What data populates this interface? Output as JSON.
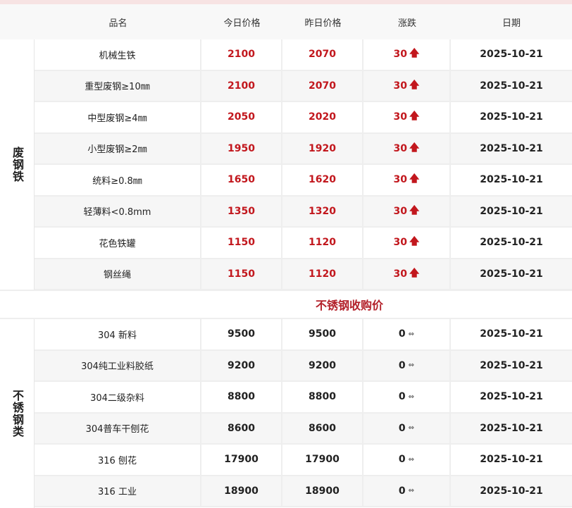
{
  "headers": [
    "品名",
    "今日价格",
    "昨日价格",
    "涨跌",
    "日期"
  ],
  "sections": [
    {
      "category": "废钢铁",
      "trend": "up",
      "rows": [
        {
          "name": "机械生铁",
          "today": "2100",
          "yesterday": "2070",
          "change": "30",
          "date": "2025-10-21"
        },
        {
          "name": "重型废钢≥10㎜",
          "today": "2100",
          "yesterday": "2070",
          "change": "30",
          "date": "2025-10-21"
        },
        {
          "name": "中型废钢≥4㎜",
          "today": "2050",
          "yesterday": "2020",
          "change": "30",
          "date": "2025-10-21"
        },
        {
          "name": "小型废钢≥2㎜",
          "today": "1950",
          "yesterday": "1920",
          "change": "30",
          "date": "2025-10-21"
        },
        {
          "name": "统料≥0.8㎜",
          "today": "1650",
          "yesterday": "1620",
          "change": "30",
          "date": "2025-10-21"
        },
        {
          "name": "轻薄料<0.8mm",
          "today": "1350",
          "yesterday": "1320",
          "change": "30",
          "date": "2025-10-21"
        },
        {
          "name": "花色铁罐",
          "today": "1150",
          "yesterday": "1120",
          "change": "30",
          "date": "2025-10-21"
        },
        {
          "name": "钢丝绳",
          "today": "1150",
          "yesterday": "1120",
          "change": "30",
          "date": "2025-10-21"
        }
      ]
    },
    {
      "category": "不锈钢类",
      "title": "不锈钢收购价",
      "trend": "flat",
      "rows": [
        {
          "name": "304 新料",
          "today": "9500",
          "yesterday": "9500",
          "change": "0",
          "date": "2025-10-21"
        },
        {
          "name": "304纯工业料胶纸",
          "today": "9200",
          "yesterday": "9200",
          "change": "0",
          "date": "2025-10-21"
        },
        {
          "name": "304二级杂料",
          "today": "8800",
          "yesterday": "8800",
          "change": "0",
          "date": "2025-10-21"
        },
        {
          "name": "304普车干刨花",
          "today": "8600",
          "yesterday": "8600",
          "change": "0",
          "date": "2025-10-21"
        },
        {
          "name": "316 刨花",
          "today": "17900",
          "yesterday": "17900",
          "change": "0",
          "date": "2025-10-21"
        },
        {
          "name": "316 工业",
          "today": "18900",
          "yesterday": "18900",
          "change": "0",
          "date": "2025-10-21"
        }
      ]
    }
  ],
  "colors": {
    "up": "#c2171d",
    "title": "#b3212a"
  },
  "icons": {
    "up": "arrow-up-icon",
    "flat": "left-right-arrow-icon"
  }
}
